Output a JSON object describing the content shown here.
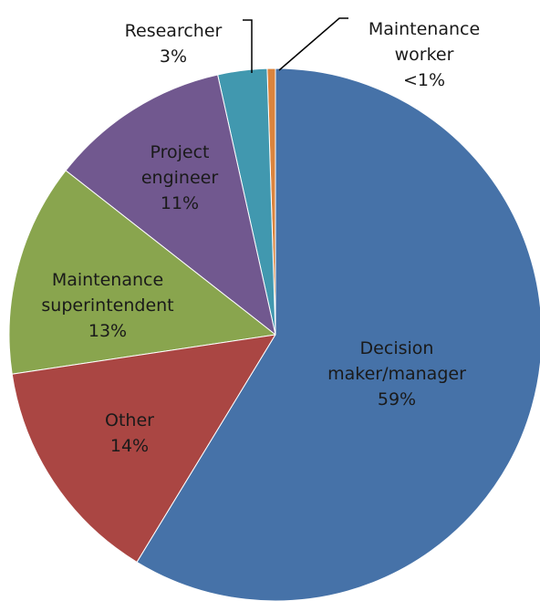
{
  "chart_data": {
    "type": "pie",
    "categories": [
      "Decision maker/manager",
      "Other",
      "Maintenance superintendent",
      "Project engineer",
      "Researcher",
      "Maintenance worker"
    ],
    "values": [
      59,
      14,
      13,
      11,
      3,
      0.5
    ],
    "value_labels": [
      "59%",
      "14%",
      "13%",
      "11%",
      "3%",
      "<1%"
    ],
    "colors": [
      "#4672a8",
      "#aa4643",
      "#89a54e",
      "#71588f",
      "#4198af",
      "#db843d"
    ]
  }
}
